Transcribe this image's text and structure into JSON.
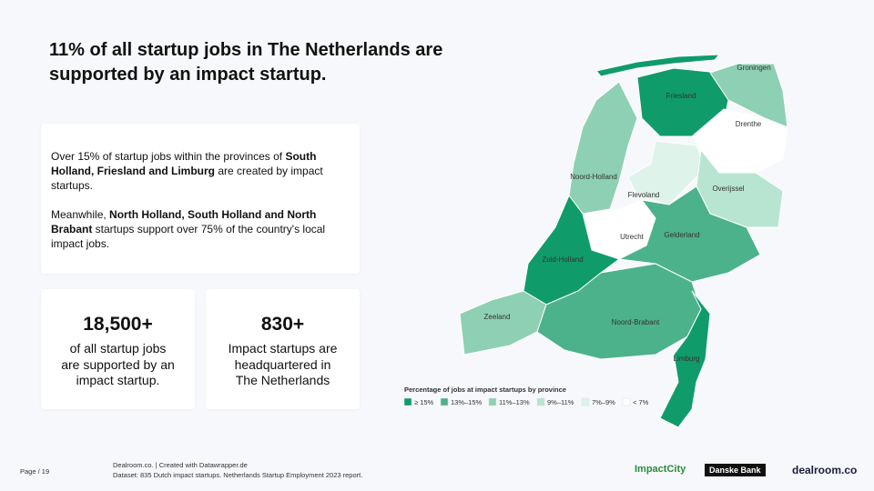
{
  "header": {
    "title": "11% of all startup jobs in The Netherlands are supported by an impact startup."
  },
  "body": {
    "paragraphs": [
      [
        {
          "text": "Over 15% of startup jobs within the provinces of ",
          "bold": false
        },
        {
          "text": "South Holland, Friesland and Limburg",
          "bold": true
        },
        {
          "text": " are created by impact startups.",
          "bold": false
        }
      ],
      [
        {
          "text": "Meanwhile, ",
          "bold": false
        },
        {
          "text": "North Holland, South Holland and North Brabant",
          "bold": true
        },
        {
          "text": " startups support over 75% of the country's local impact jobs.",
          "bold": false
        }
      ]
    ]
  },
  "stats": [
    {
      "value": "18,500+",
      "text": "of all startup jobs are supported by an impact startup."
    },
    {
      "value": "830+",
      "text": "Impact startups are headquartered in The Netherlands"
    }
  ],
  "map": {
    "legend_title": "Percentage of jobs at impact startups by province",
    "legend": [
      {
        "label": "≥ 15%",
        "color": "#109b6b"
      },
      {
        "label": "13%–15%",
        "color": "#4cb28c"
      },
      {
        "label": "11%–13%",
        "color": "#8ed0b3"
      },
      {
        "label": "9%–11%",
        "color": "#b8e5d1"
      },
      {
        "label": "7%–9%",
        "color": "#def3ea"
      },
      {
        "label": "< 7%",
        "color": "#ffffff"
      }
    ],
    "provinces": [
      {
        "label": "Friesland",
        "class": 0
      },
      {
        "label": "Groningen",
        "class": 2
      },
      {
        "label": "Drenthe",
        "class": 5
      },
      {
        "label": "Noord-Holland",
        "class": 2
      },
      {
        "label": "Flevoland",
        "class": 4
      },
      {
        "label": "Overijssel",
        "class": 3
      },
      {
        "label": "Utrecht",
        "class": 5
      },
      {
        "label": "Gelderland",
        "class": 1
      },
      {
        "label": "Zuid-Holland",
        "class": 0
      },
      {
        "label": "Zeeland",
        "class": 2
      },
      {
        "label": "Noord-Brabant",
        "class": 1
      },
      {
        "label": "Limburg",
        "class": 0
      }
    ]
  },
  "footer": {
    "page": "Page / 19",
    "source": "Dealroom.co. | Created with Datawrapper.de",
    "dataset": "Dataset: 835 Dutch impact startups. Netherlands Startup Employment 2023 report.",
    "logos": [
      "ImpactCity",
      "Danske Bank",
      "dealroom.co"
    ]
  }
}
